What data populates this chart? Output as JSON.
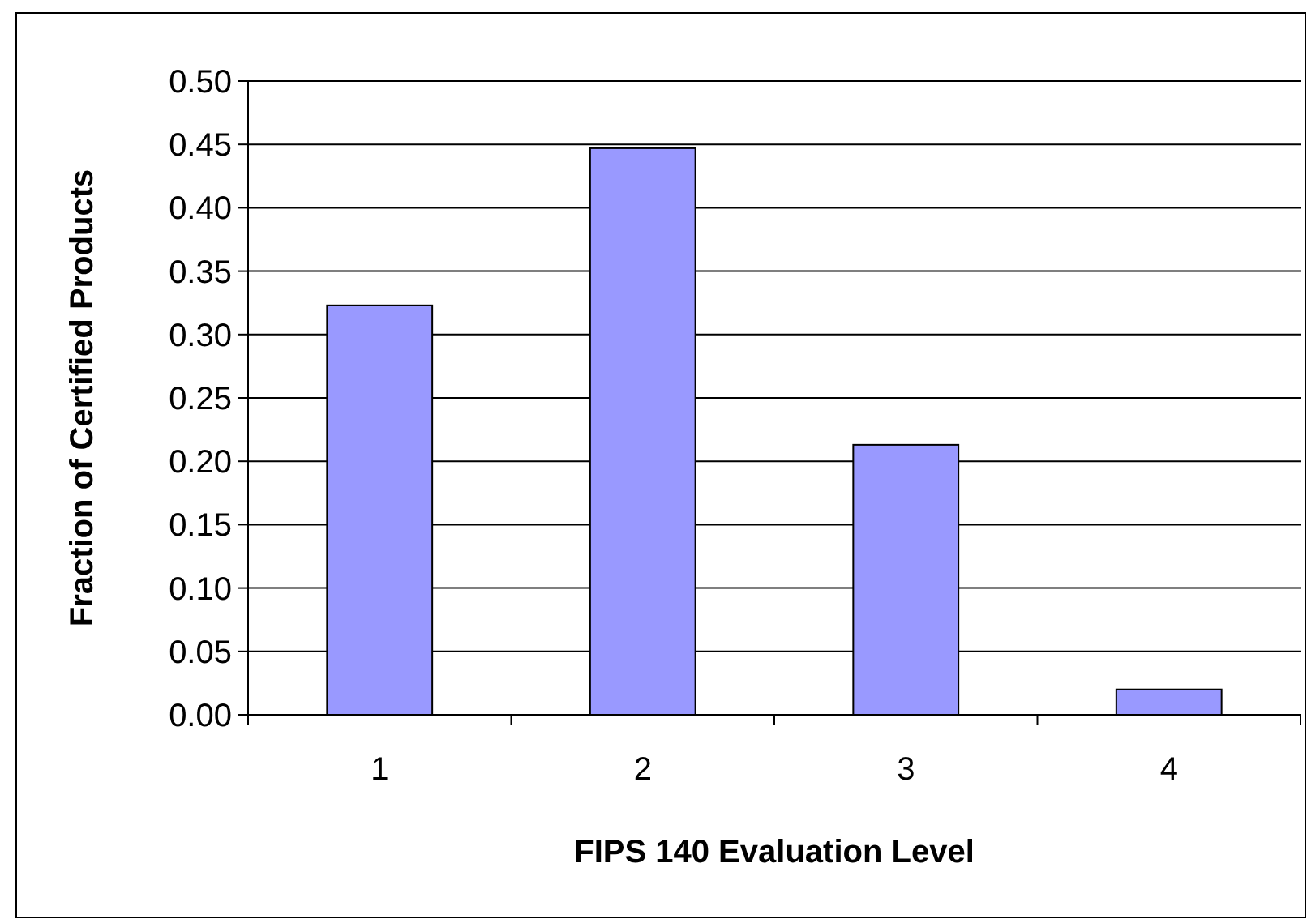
{
  "chart_data": {
    "type": "bar",
    "xlabel": "FIPS 140 Evaluation Level",
    "ylabel": "Fraction of Certified Products",
    "categories": [
      "1",
      "2",
      "3",
      "4"
    ],
    "values": [
      0.323,
      0.447,
      0.213,
      0.02
    ],
    "color": "#9999ff",
    "ylim": [
      0,
      0.5
    ],
    "yticks": [
      {
        "value": 0,
        "label": "0.00"
      },
      {
        "value": 0.05,
        "label": "0.05"
      },
      {
        "value": 0.1,
        "label": "0.10"
      },
      {
        "value": 0.15,
        "label": "0.15"
      },
      {
        "value": 0.2,
        "label": "0.20"
      },
      {
        "value": 0.25,
        "label": "0.25"
      },
      {
        "value": 0.3,
        "label": "0.30"
      },
      {
        "value": 0.35,
        "label": "0.35"
      },
      {
        "value": 0.4,
        "label": "0.40"
      },
      {
        "value": 0.45,
        "label": "0.45"
      },
      {
        "value": 0.5,
        "label": "0.50"
      }
    ],
    "grid": "y"
  }
}
